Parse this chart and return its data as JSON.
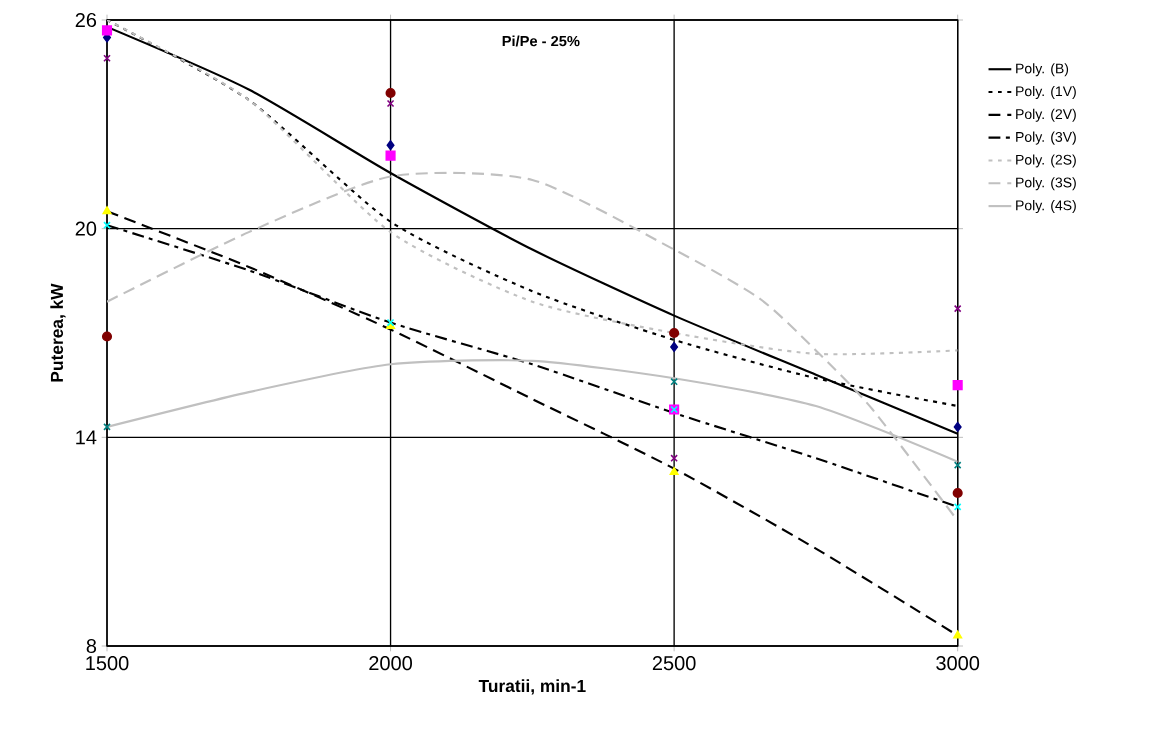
{
  "chart_data": {
    "type": "line",
    "title": "Pi/Pe - 25%",
    "xlabel": "Turatii, min-1",
    "ylabel": "Puterea, kW",
    "xlim": [
      1500,
      3000
    ],
    "ylim": [
      8,
      26
    ],
    "xticks": [
      1500,
      2000,
      2500,
      3000
    ],
    "yticks": [
      8,
      14,
      20,
      26
    ],
    "grid": true,
    "legend": "right",
    "series": [
      {
        "type": "scatter",
        "marker": "diamond",
        "color": "#000080",
        "x": [
          1500,
          2000,
          2500,
          3000
        ],
        "values": [
          25.5,
          22.4,
          16.6,
          14.3
        ]
      },
      {
        "type": "scatter",
        "marker": "square",
        "color": "#ff00ff",
        "x": [
          1500,
          2000,
          2500,
          3000
        ],
        "values": [
          25.7,
          22.1,
          14.8,
          15.5
        ]
      },
      {
        "type": "scatter",
        "marker": "triangle",
        "color": "#ffff00",
        "x": [
          1500,
          2000,
          2500,
          3000
        ],
        "values": [
          20.5,
          17.2,
          13.0,
          8.3
        ]
      },
      {
        "type": "scatter",
        "marker": "cross",
        "color": "#00ffff",
        "x": [
          1500,
          2000,
          2500,
          3000
        ],
        "values": [
          20.1,
          17.3,
          14.8,
          12.0
        ]
      },
      {
        "type": "scatter",
        "marker": "cross",
        "color": "#800080",
        "x": [
          1500,
          2000,
          2500,
          3000
        ],
        "values": [
          24.9,
          23.6,
          13.4,
          17.7
        ]
      },
      {
        "type": "scatter",
        "marker": "circle",
        "color": "#800000",
        "x": [
          1500,
          2000,
          2500,
          3000
        ],
        "values": [
          16.9,
          23.9,
          17.0,
          12.4
        ]
      },
      {
        "type": "scatter",
        "marker": "cross",
        "color": "#008080",
        "x": [
          1500,
          2500,
          3000
        ],
        "values": [
          14.3,
          15.6,
          13.2
        ]
      },
      {
        "name": "Poly. (B)",
        "line_style": "solid",
        "color": "#000000",
        "x": [
          1500,
          1750,
          2000,
          2250,
          2500,
          2750,
          3000
        ],
        "values": [
          25.8,
          24.0,
          21.6,
          19.4,
          17.5,
          15.8,
          14.1
        ]
      },
      {
        "name": "Poly. (1V)",
        "line_style": "dotted",
        "color": "#000000",
        "x": [
          1500,
          1750,
          2000,
          2250,
          2500,
          2750,
          3000
        ],
        "values": [
          26.0,
          23.7,
          20.2,
          18.2,
          16.8,
          15.7,
          14.9
        ]
      },
      {
        "name": "Poly. (2V)",
        "line_style": "dashed",
        "color": "#000000",
        "x": [
          1500,
          1750,
          2000,
          2250,
          2500,
          2750,
          3000
        ],
        "values": [
          20.5,
          18.9,
          17.1,
          15.1,
          13.1,
          10.8,
          8.3
        ]
      },
      {
        "name": "Poly. (3V)",
        "line_style": "dashdot",
        "color": "#000000",
        "x": [
          1500,
          1750,
          2000,
          2250,
          2500,
          2750,
          3000
        ],
        "values": [
          20.1,
          18.8,
          17.3,
          16.1,
          14.7,
          13.4,
          12.0
        ]
      },
      {
        "name": "Poly. (2S)",
        "line_style": "dotted",
        "color": "#c0c0c0",
        "x": [
          1500,
          1750,
          2000,
          2250,
          2500,
          2750,
          3000
        ],
        "values": [
          26.0,
          23.7,
          19.9,
          17.9,
          17.0,
          16.4,
          16.5
        ]
      },
      {
        "name": "Poly. (3S)",
        "line_style": "dashed",
        "color": "#c0c0c0",
        "x": [
          1500,
          1750,
          2000,
          2250,
          2500,
          2650,
          2750,
          2850,
          3000
        ],
        "values": [
          17.9,
          19.9,
          21.5,
          21.4,
          19.4,
          18.0,
          16.5,
          14.8,
          11.6
        ]
      },
      {
        "name": "Poly. (4S)",
        "line_style": "solid",
        "color": "#c0c0c0",
        "x": [
          1500,
          1750,
          2000,
          2250,
          2500,
          2750,
          3000
        ],
        "values": [
          14.3,
          15.3,
          16.1,
          16.2,
          15.7,
          14.9,
          13.3
        ]
      }
    ]
  }
}
